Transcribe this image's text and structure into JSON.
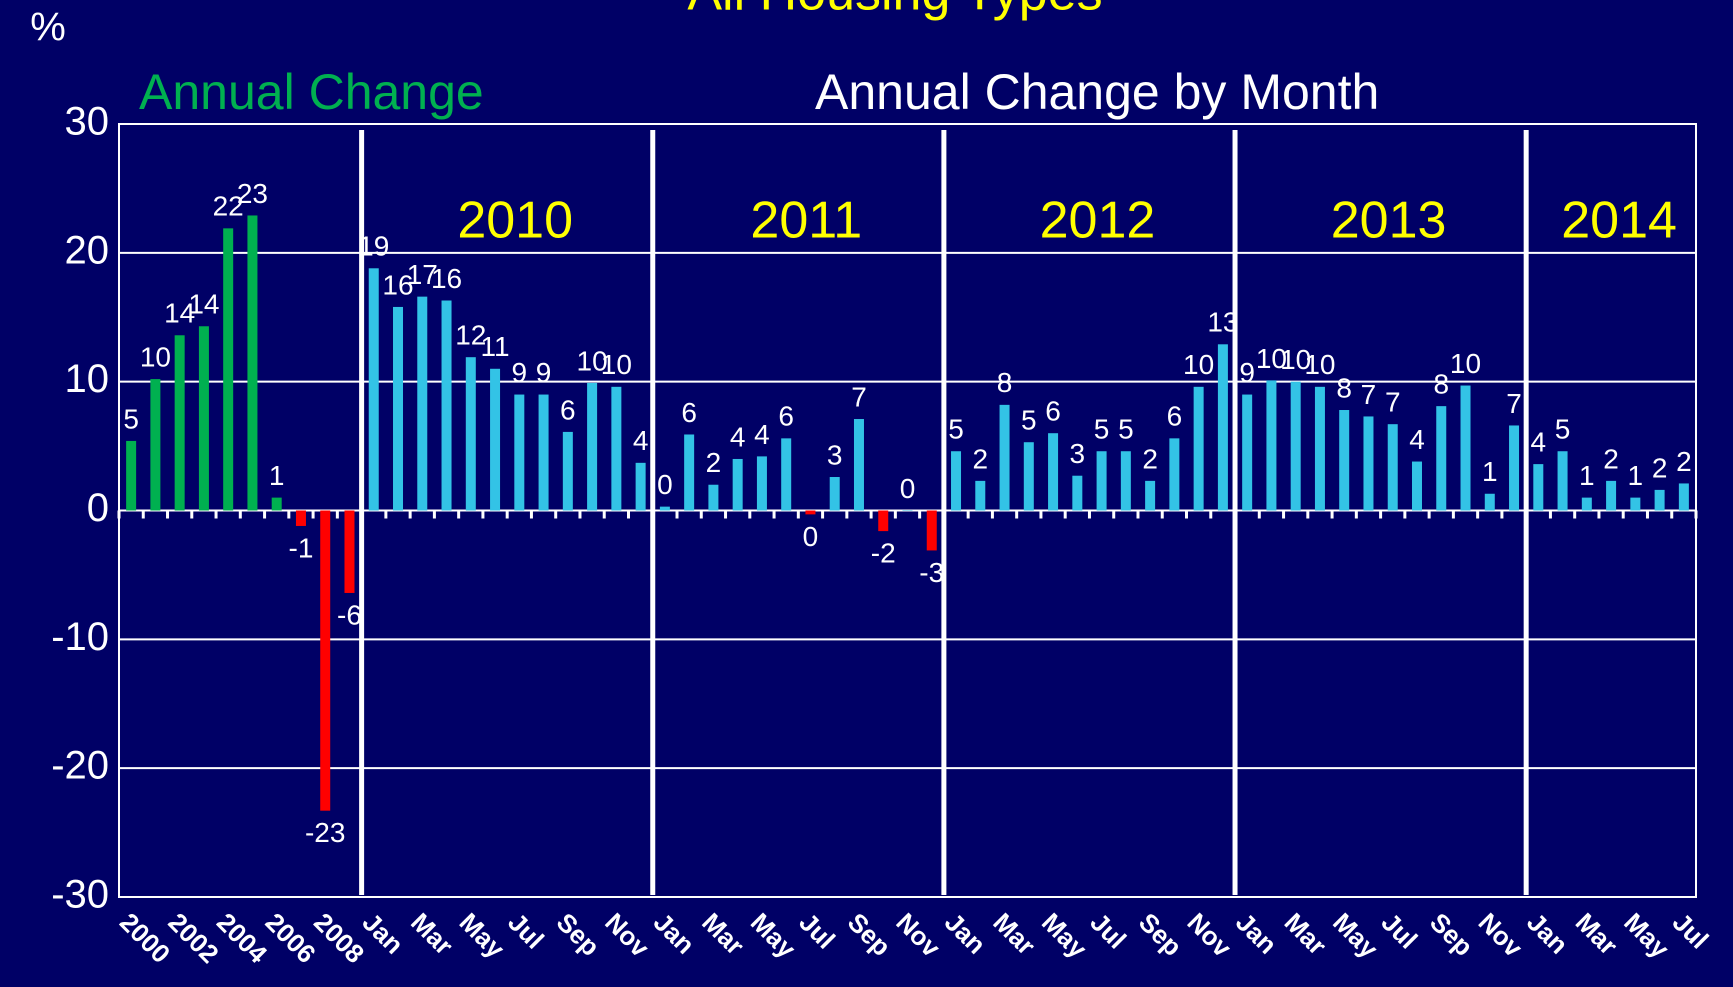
{
  "chart_data": {
    "type": "bar",
    "title": "All Housing Types",
    "y_label": "%",
    "categories": [
      "2000",
      null,
      "2002",
      null,
      "2004",
      null,
      "2006",
      null,
      "2008",
      null,
      "Jan",
      null,
      "Mar",
      null,
      "May",
      null,
      "Jul",
      null,
      "Sep",
      null,
      "Nov",
      null,
      "Jan",
      null,
      "Mar",
      null,
      "May",
      null,
      "Jul",
      null,
      "Sep",
      null,
      "Nov",
      null,
      "Jan",
      null,
      "Mar",
      null,
      "May",
      null,
      "Jul",
      null,
      "Sep",
      null,
      "Nov",
      null,
      "Jan",
      null,
      "Mar",
      null,
      "May",
      null,
      "Jul",
      null,
      "Sep",
      null,
      "Nov",
      null,
      "Jan",
      null,
      "Mar",
      null,
      "May",
      null,
      "Jul"
    ],
    "series": [
      {
        "name": "Annual Change",
        "color": "#00b050",
        "values": [
          5.4,
          10.2,
          13.6,
          14.3,
          21.9,
          22.9,
          1.0,
          -1.2,
          -23.3,
          -6.4,
          null,
          null,
          null,
          null,
          null,
          null,
          null,
          null,
          null,
          null,
          null,
          null,
          null,
          null,
          null,
          null,
          null,
          null,
          null,
          null,
          null,
          null,
          null,
          null,
          null,
          null,
          null,
          null,
          null,
          null,
          null,
          null,
          null,
          null,
          null,
          null,
          null,
          null,
          null,
          null,
          null,
          null,
          null,
          null,
          null,
          null,
          null,
          null,
          null,
          null,
          null,
          null,
          null,
          null,
          null
        ]
      },
      {
        "name": "Annual Change by Month",
        "color": "#33c3e6",
        "values": [
          null,
          null,
          null,
          null,
          null,
          null,
          null,
          null,
          null,
          null,
          18.8,
          15.8,
          16.6,
          16.3,
          11.9,
          11.0,
          9.0,
          9.0,
          6.1,
          9.9,
          9.6,
          3.7,
          0.3,
          5.9,
          2.0,
          4.0,
          4.2,
          5.6,
          -0.3,
          2.6,
          7.1,
          -1.6,
          0.0,
          -3.1,
          4.6,
          2.3,
          8.2,
          5.3,
          6.0,
          2.7,
          4.6,
          4.6,
          2.3,
          5.6,
          9.6,
          12.9,
          9.0,
          10.1,
          10.0,
          9.6,
          7.8,
          7.3,
          6.7,
          3.8,
          8.1,
          9.7,
          1.3,
          6.6,
          3.6,
          4.6,
          1.0,
          2.3,
          1.0,
          1.6,
          2.1
        ]
      }
    ],
    "value_labels": [
      "5",
      "10",
      "14",
      "14",
      "22",
      "23",
      "1",
      "-1",
      "-23",
      "-6",
      "19",
      "16",
      "17",
      "16",
      "12",
      "11",
      "9",
      "9",
      "6",
      "10",
      "10",
      "4",
      "0",
      "6",
      "2",
      "4",
      "4",
      "6",
      "0",
      "3",
      "7",
      "-2",
      "0",
      "-3",
      "5",
      "2",
      "8",
      "5",
      "6",
      "3",
      "5",
      "5",
      "2",
      "6",
      "10",
      "13",
      "9",
      "10",
      "10",
      "10",
      "8",
      "7",
      "7",
      "4",
      "8",
      "10",
      "1",
      "7",
      "4",
      "5",
      "1",
      "2",
      "1",
      "2",
      "2"
    ],
    "negative_color": "#ff0000",
    "year_groups": [
      "2010",
      "2011",
      "2012",
      "2013",
      "2014"
    ],
    "ylim": [
      -30,
      30
    ],
    "yticks": [
      -30,
      -20,
      -10,
      0,
      10,
      20,
      30
    ],
    "grid": true
  }
}
